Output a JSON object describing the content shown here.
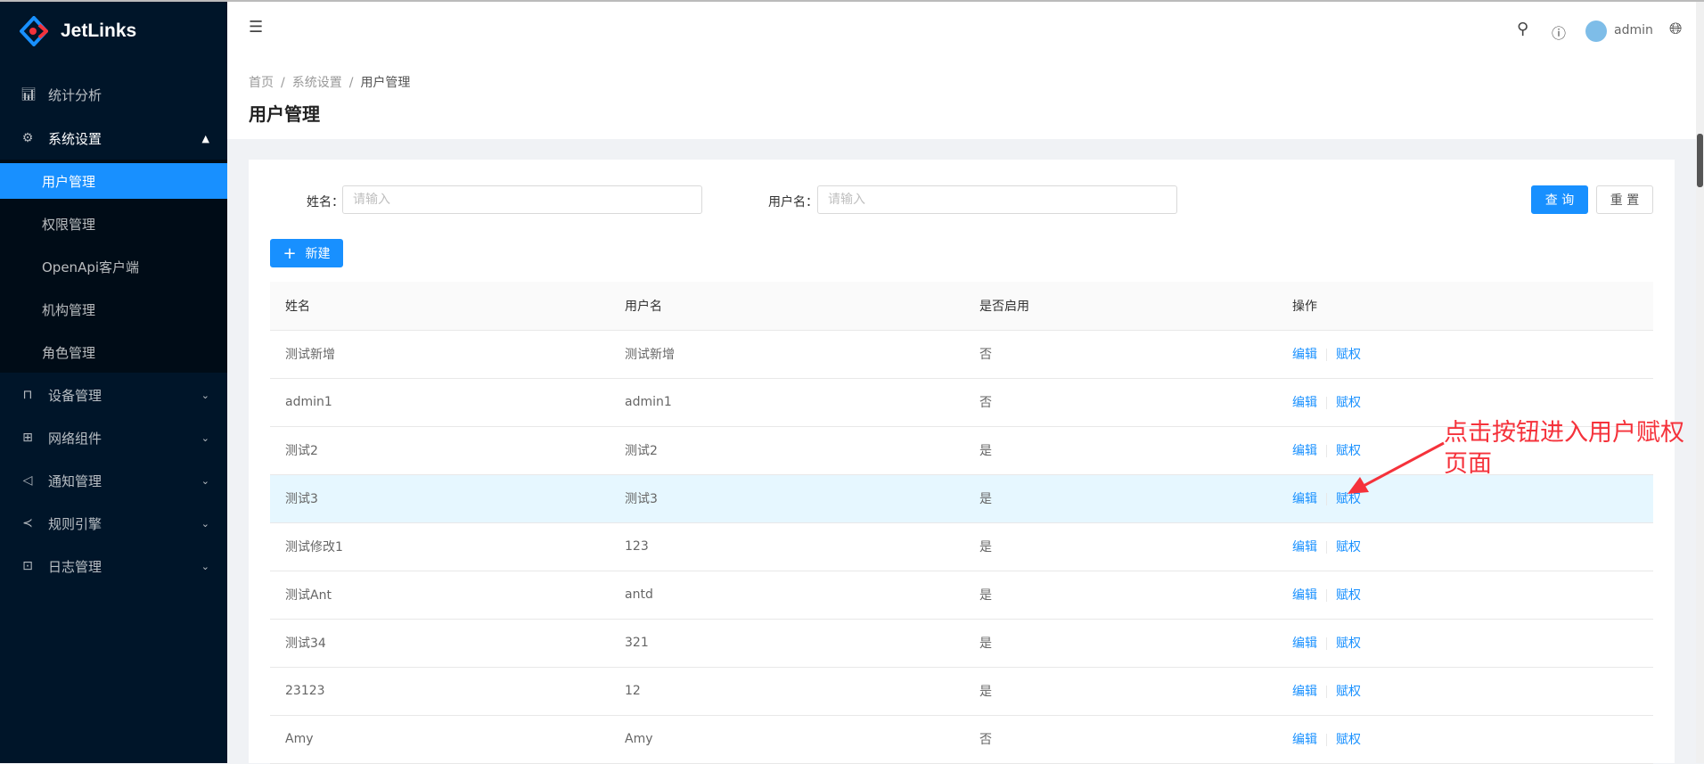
{
  "app": {
    "name": "JetLinks"
  },
  "sidebar": {
    "items": [
      {
        "label": "统计分析",
        "icon": "bar-chart-icon"
      },
      {
        "label": "系统设置",
        "icon": "gear-icon",
        "expanded": true,
        "children": [
          {
            "label": "用户管理",
            "active": true
          },
          {
            "label": "权限管理"
          },
          {
            "label": "OpenApi客户端"
          },
          {
            "label": "机构管理"
          },
          {
            "label": "角色管理"
          }
        ]
      },
      {
        "label": "设备管理",
        "icon": "device-icon"
      },
      {
        "label": "网络组件",
        "icon": "grid-icon"
      },
      {
        "label": "通知管理",
        "icon": "sound-icon"
      },
      {
        "label": "规则引擎",
        "icon": "share-icon"
      },
      {
        "label": "日志管理",
        "icon": "log-icon"
      }
    ]
  },
  "header": {
    "user": "admin"
  },
  "breadcrumb": [
    "首页",
    "系统设置",
    "用户管理"
  ],
  "page_title": "用户管理",
  "search": {
    "name_label": "姓名：",
    "name_placeholder": "请输入",
    "username_label": "用户名：",
    "username_placeholder": "请输入",
    "query": "查 询",
    "reset": "重 置"
  },
  "new_button": "新建",
  "table": {
    "columns": [
      "姓名",
      "用户名",
      "是否启用",
      "操作"
    ],
    "edit": "编辑",
    "grant": "赋权",
    "rows": [
      [
        "测试新增",
        "测试新增",
        "否"
      ],
      [
        "admin1",
        "admin1",
        "否"
      ],
      [
        "测试2",
        "测试2",
        "是"
      ],
      [
        "测试3",
        "测试3",
        "是"
      ],
      [
        "测试修改1",
        "123",
        "是"
      ],
      [
        "测试Ant",
        "antd",
        "是"
      ],
      [
        "测试34",
        "321",
        "是"
      ],
      [
        "23123",
        "12",
        "是"
      ],
      [
        "Amy",
        "Amy",
        "否"
      ]
    ]
  },
  "annotation": "点击按钮进入用户赋权页面",
  "colors": {
    "primary": "#1890ff",
    "sider": "#001529",
    "annotation": "#f5323b",
    "row_highlight": "#e6f7ff"
  }
}
